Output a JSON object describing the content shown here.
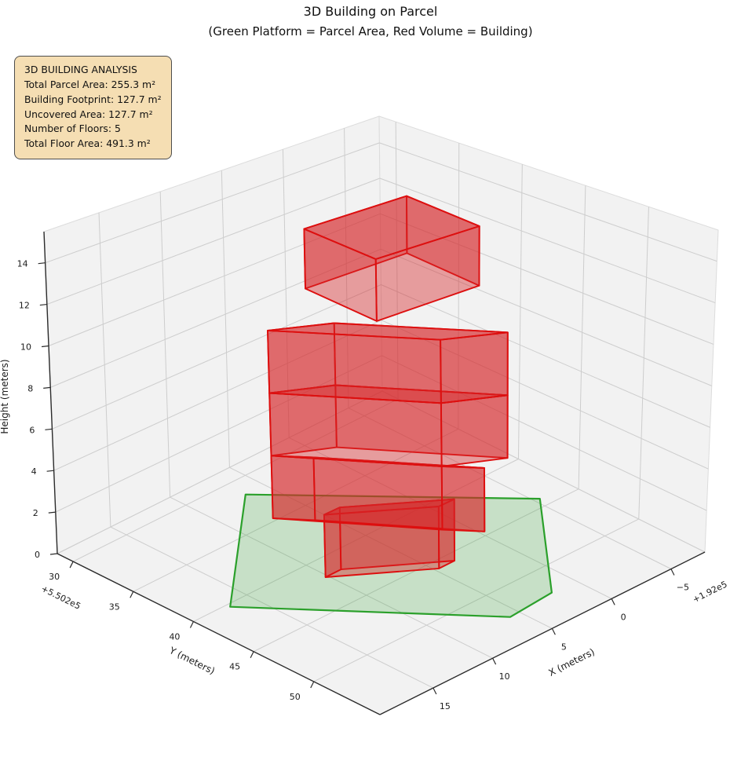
{
  "info_box": {
    "header": "3D BUILDING ANALYSIS",
    "lines": [
      "Total Parcel Area: 255.3 m²",
      "Building Footprint: 127.7 m²",
      "Uncovered Area: 127.7 m²",
      "Number of Floors: 5",
      "Total Floor Area: 491.3 m²"
    ]
  },
  "chart_data": {
    "type": "3d-building-plot",
    "title": "3D Building on Parcel",
    "subtitle": "(Green Platform = Parcel Area, Red Volume = Building)",
    "legend_meaning": {
      "green_platform": "Parcel Area",
      "red_volume": "Building"
    },
    "axes": {
      "x": {
        "label": "X (meters)",
        "ticks": [
          -5,
          0,
          5,
          10,
          15
        ],
        "offset_text": "+1.92e5"
      },
      "y": {
        "label": "Y (meters)",
        "ticks": [
          30,
          35,
          40,
          45,
          50
        ],
        "offset_text": "+5.502e5"
      },
      "z": {
        "label": "Height (meters)",
        "ticks": [
          0,
          2,
          4,
          6,
          8,
          10,
          12,
          14
        ]
      }
    },
    "analysis": {
      "total_parcel_area_m2": 255.3,
      "building_footprint_m2": 127.7,
      "uncovered_area_m2": 127.7,
      "number_of_floors": 5,
      "total_floor_area_m2": 491.3
    },
    "floor_height_m": 2.94,
    "parcel_polygon_xy": [
      [
        6.6,
        31.6
      ],
      [
        -5.4,
        44.2
      ],
      [
        2.0,
        52.5
      ],
      [
        5.8,
        52.8
      ],
      [
        16.7,
        40.3
      ]
    ],
    "floors": [
      {
        "name": "floor-1",
        "z0": 0,
        "z1": 2.94,
        "footprint": [
          [
            10.2,
            41.8
          ],
          [
            4.7,
            45.8
          ],
          [
            3.4,
            45.8
          ],
          [
            8.9,
            41.8
          ]
        ]
      },
      {
        "name": "floor-2",
        "z0": 2.94,
        "z1": 5.88,
        "footprint": [
          [
            12.65,
            40.0
          ],
          [
            6.6,
            48.0
          ],
          [
            5.0,
            49.9
          ],
          [
            11.05,
            41.9
          ]
        ]
      },
      {
        "name": "floor-3",
        "z0": 5.88,
        "z1": 8.82,
        "footprint": [
          [
            12.65,
            40.0
          ],
          [
            6.6,
            48.0
          ],
          [
            3.1,
            49.9
          ],
          [
            9.15,
            41.9
          ]
        ]
      },
      {
        "name": "floor-4",
        "z0": 8.82,
        "z1": 11.76,
        "footprint": [
          [
            12.65,
            40.0
          ],
          [
            6.6,
            48.0
          ],
          [
            3.1,
            49.9
          ],
          [
            9.15,
            41.9
          ]
        ]
      },
      {
        "name": "floor-5",
        "z0": 11.76,
        "z1": 14.7,
        "footprint": [
          [
            6.64,
            37.0
          ],
          [
            7.2,
            43.4
          ],
          [
            -0.74,
            43.7
          ],
          [
            -1.3,
            37.3
          ]
        ]
      }
    ],
    "colors": {
      "parcel_fill": "#2ca02c",
      "parcel_edge": "#2ba02b",
      "building_fill": "#d62728",
      "building_edge": "#dd0f0f",
      "pane": "#f2f2f2",
      "grid": "#cdcdcd",
      "spine": "#2b2b2b",
      "info_box_bg": "#f5deb3"
    }
  }
}
